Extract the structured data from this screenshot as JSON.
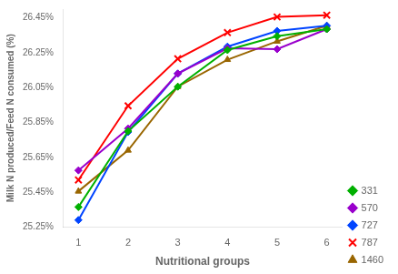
{
  "chart_data": {
    "type": "line",
    "xlabel": "Nutritional groups",
    "ylabel": "Milk N produced/Feed N consumed (%)",
    "x": [
      1,
      2,
      3,
      4,
      5,
      6
    ],
    "series": [
      {
        "name": "331",
        "color": "#00b000",
        "marker": "diamond",
        "values": [
          25.365,
          25.8,
          26.055,
          26.265,
          26.345,
          26.385
        ]
      },
      {
        "name": "570",
        "color": "#9900cc",
        "marker": "diamond",
        "values": [
          25.575,
          25.815,
          26.13,
          26.275,
          26.27,
          26.385
        ]
      },
      {
        "name": "727",
        "color": "#0044ff",
        "marker": "diamond",
        "values": [
          25.29,
          25.795,
          26.13,
          26.285,
          26.375,
          26.405
        ]
      },
      {
        "name": "787",
        "color": "#ff0000",
        "marker": "x",
        "values": [
          25.52,
          25.945,
          26.215,
          26.365,
          26.455,
          26.465
        ]
      },
      {
        "name": "1460",
        "color": "#996600",
        "marker": "triangle",
        "values": [
          25.455,
          25.69,
          26.055,
          26.21,
          26.315,
          26.405
        ]
      }
    ],
    "xlim": [
      0.7,
      6.3
    ],
    "xticks": [
      1,
      2,
      3,
      4,
      5,
      6
    ],
    "ylim": [
      25.25,
      26.5
    ],
    "yticks": [
      {
        "value": 25.25,
        "label": "25.25%"
      },
      {
        "value": 25.45,
        "label": "25.45%"
      },
      {
        "value": 25.65,
        "label": "25.65%"
      },
      {
        "value": 25.85,
        "label": "25.85%"
      },
      {
        "value": 26.05,
        "label": "26.05%"
      },
      {
        "value": 26.25,
        "label": "26.25%"
      },
      {
        "value": 26.45,
        "label": "26.45%"
      }
    ],
    "grid": false,
    "legend": "lower right"
  }
}
